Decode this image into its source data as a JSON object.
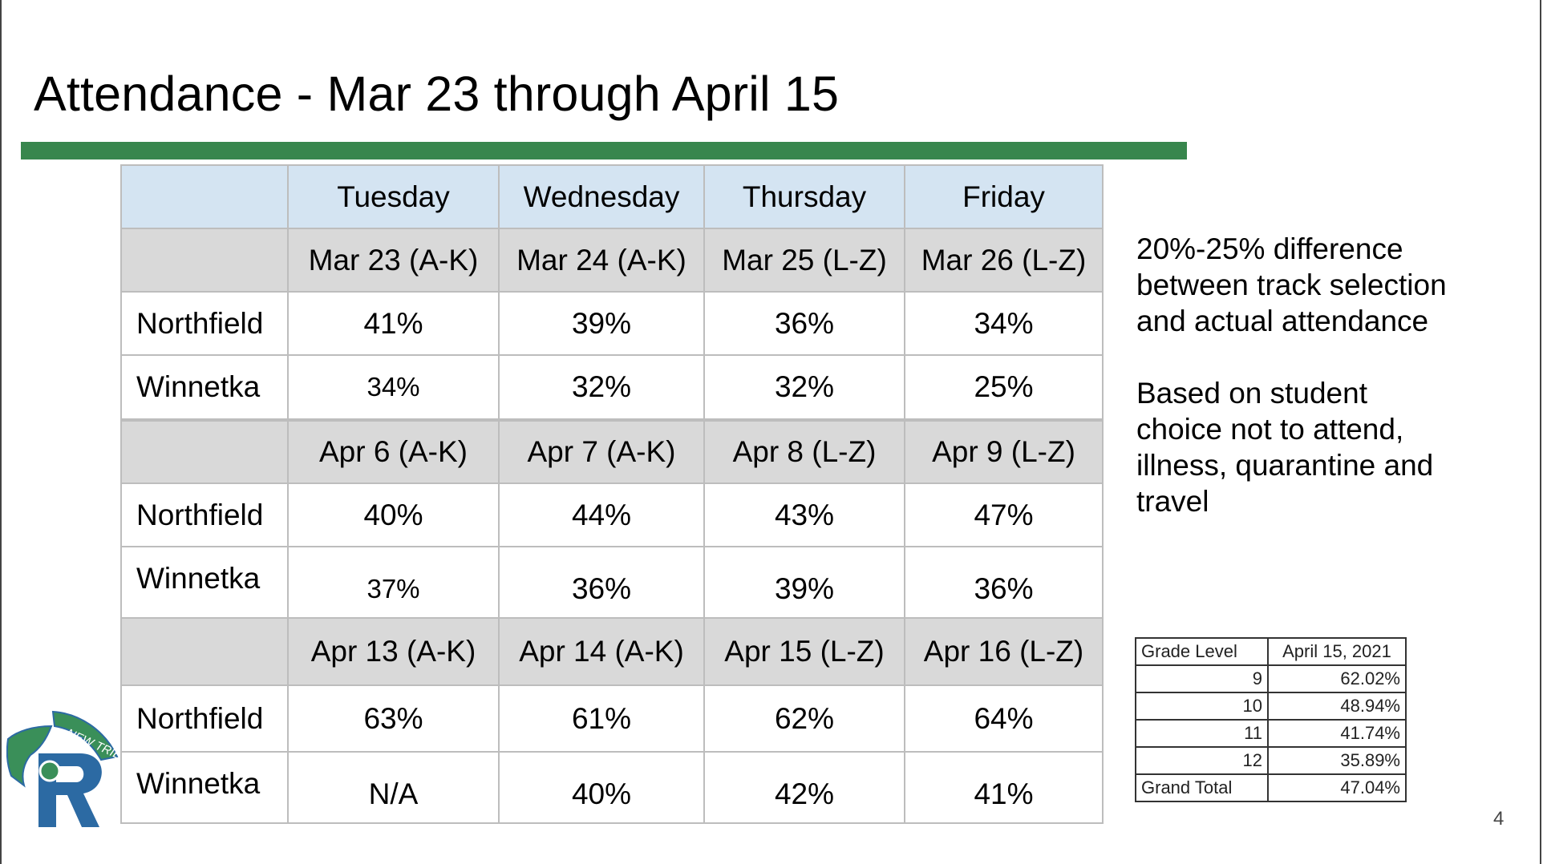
{
  "title": "Attendance - Mar 23 through April 15",
  "colors": {
    "accent_bar": "#38864d",
    "header_bg": "#d4e4f2",
    "date_bg": "#d9d9d9",
    "logo_green": "#3a8f59",
    "logo_blue": "#2c6aa3"
  },
  "table": {
    "days": [
      "Tuesday",
      "Wednesday",
      "Thursday",
      "Friday"
    ],
    "blocks": [
      {
        "dates": [
          "Mar 23  (A-K)",
          "Mar 24 (A-K)",
          "Mar 25 (L-Z)",
          "Mar 26 (L-Z)"
        ],
        "rows": [
          {
            "school": "Northfield",
            "values": [
              "41%",
              "39%",
              "36%",
              "34%"
            ]
          },
          {
            "school": "Winnetka",
            "values": [
              "34%",
              "32%",
              "32%",
              "25%"
            ]
          }
        ]
      },
      {
        "dates": [
          "Apr 6  (A-K)",
          "Apr 7 (A-K)",
          "Apr 8 (L-Z)",
          "Apr 9 (L-Z)"
        ],
        "rows": [
          {
            "school": "Northfield",
            "values": [
              "40%",
              "44%",
              "43%",
              "47%"
            ]
          },
          {
            "school": "Winnetka",
            "values": [
              "37%",
              "36%",
              "39%",
              "36%"
            ]
          }
        ]
      },
      {
        "dates": [
          "Apr 13  (A-K)",
          "Apr 14 (A-K)",
          "Apr 15 (L-Z)",
          "Apr 16 (L-Z)"
        ],
        "rows": [
          {
            "school": "Northfield",
            "values": [
              "63%",
              "61%",
              "62%",
              "64%"
            ]
          },
          {
            "school": "Winnetka",
            "values": [
              "N/A",
              "40%",
              "42%",
              "41%"
            ]
          }
        ]
      }
    ]
  },
  "notes": {
    "difference": "20%-25% difference between track selection and actual attendance",
    "reasons": "Based on student choice not to attend, illness, quarantine and travel"
  },
  "grade_table": {
    "headers": [
      "Grade Level",
      "April 15, 2021"
    ],
    "rows": [
      {
        "grade": "9",
        "value": "62.02%"
      },
      {
        "grade": "10",
        "value": "48.94%"
      },
      {
        "grade": "11",
        "value": "41.74%"
      },
      {
        "grade": "12",
        "value": "35.89%"
      }
    ],
    "total_label": "Grand Total",
    "total_value": "47.04%"
  },
  "logo": {
    "text": "NEW TRIER",
    "icon": "new-trier-logo-icon"
  },
  "page_number": "4"
}
